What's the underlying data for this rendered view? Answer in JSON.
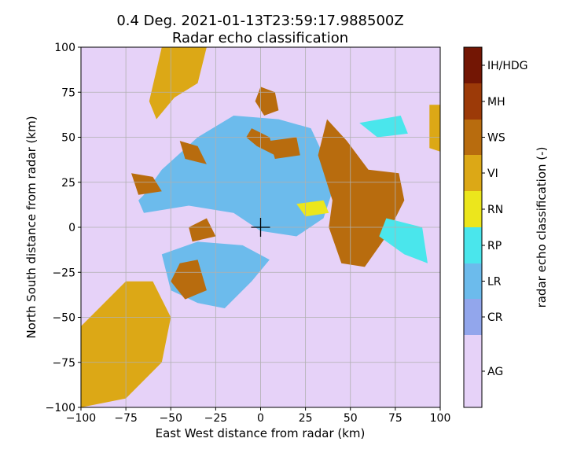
{
  "chart_data": {
    "type": "heatmap",
    "title": "0.4 Deg. 2021-01-13T23:59:17.988500Z",
    "subtitle": "Radar echo classification",
    "xlabel": "East West distance from radar (km)",
    "ylabel": "North South distance from radar (km)",
    "xlim": [
      -100,
      100
    ],
    "ylim": [
      -100,
      100
    ],
    "xticks": [
      -100,
      -75,
      -50,
      -25,
      0,
      25,
      50,
      75,
      100
    ],
    "yticks": [
      -100,
      -75,
      -50,
      -25,
      0,
      25,
      50,
      75,
      100
    ],
    "xtick_labels": [
      "−100",
      "−75",
      "−50",
      "−25",
      "0",
      "25",
      "50",
      "75",
      "100"
    ],
    "ytick_labels": [
      "−100",
      "−75",
      "−50",
      "−25",
      "0",
      "25",
      "50",
      "75",
      "100"
    ],
    "grid": true,
    "radar_marker": [
      0,
      0
    ],
    "background_class": "AG",
    "colorbar": {
      "label": "radar echo classification (-)",
      "classes": [
        {
          "name": "AG",
          "color": "#e6d2f8"
        },
        {
          "name": "CR",
          "color": "#92a6ec"
        },
        {
          "name": "LR",
          "color": "#6cbbec"
        },
        {
          "name": "RP",
          "color": "#4ae6ec"
        },
        {
          "name": "RN",
          "color": "#ece61c"
        },
        {
          "name": "VI",
          "color": "#dca816"
        },
        {
          "name": "WS",
          "color": "#b86c0e"
        },
        {
          "name": "MH",
          "color": "#9c3a08"
        },
        {
          "name": "IH/HDG",
          "color": "#731604"
        }
      ]
    },
    "regions": [
      {
        "cls": "LR",
        "points": [
          [
            -65,
            18
          ],
          [
            -55,
            32
          ],
          [
            -35,
            50
          ],
          [
            -15,
            62
          ],
          [
            10,
            60
          ],
          [
            28,
            55
          ],
          [
            35,
            40
          ],
          [
            40,
            20
          ],
          [
            35,
            5
          ],
          [
            20,
            -5
          ],
          [
            0,
            -2
          ],
          [
            -15,
            8
          ],
          [
            -40,
            12
          ],
          [
            -65,
            8
          ],
          [
            -68,
            15
          ]
        ]
      },
      {
        "cls": "LR",
        "points": [
          [
            -55,
            -15
          ],
          [
            -35,
            -8
          ],
          [
            -10,
            -10
          ],
          [
            5,
            -18
          ],
          [
            -5,
            -30
          ],
          [
            -20,
            -45
          ],
          [
            -35,
            -42
          ],
          [
            -50,
            -35
          ]
        ]
      },
      {
        "cls": "WS",
        "points": [
          [
            37,
            60
          ],
          [
            48,
            48
          ],
          [
            60,
            32
          ],
          [
            77,
            30
          ],
          [
            80,
            15
          ],
          [
            70,
            -5
          ],
          [
            58,
            -22
          ],
          [
            45,
            -20
          ],
          [
            38,
            0
          ],
          [
            40,
            15
          ],
          [
            32,
            40
          ]
        ]
      },
      {
        "cls": "WS",
        "points": [
          [
            -5,
            55
          ],
          [
            5,
            50
          ],
          [
            8,
            40
          ],
          [
            -2,
            45
          ],
          [
            -8,
            50
          ]
        ]
      },
      {
        "cls": "WS",
        "points": [
          [
            0,
            78
          ],
          [
            8,
            75
          ],
          [
            10,
            65
          ],
          [
            2,
            62
          ],
          [
            -3,
            70
          ]
        ]
      },
      {
        "cls": "WS",
        "points": [
          [
            5,
            48
          ],
          [
            20,
            50
          ],
          [
            22,
            40
          ],
          [
            8,
            38
          ]
        ]
      },
      {
        "cls": "WS",
        "points": [
          [
            -72,
            30
          ],
          [
            -60,
            28
          ],
          [
            -55,
            20
          ],
          [
            -68,
            18
          ]
        ]
      },
      {
        "cls": "WS",
        "points": [
          [
            -45,
            -20
          ],
          [
            -35,
            -18
          ],
          [
            -30,
            -35
          ],
          [
            -42,
            -40
          ],
          [
            -50,
            -30
          ]
        ]
      },
      {
        "cls": "WS",
        "points": [
          [
            -40,
            0
          ],
          [
            -30,
            5
          ],
          [
            -25,
            -5
          ],
          [
            -38,
            -8
          ]
        ]
      },
      {
        "cls": "WS",
        "points": [
          [
            -45,
            48
          ],
          [
            -35,
            45
          ],
          [
            -30,
            35
          ],
          [
            -42,
            38
          ]
        ]
      },
      {
        "cls": "VI",
        "points": [
          [
            -55,
            100
          ],
          [
            -30,
            100
          ],
          [
            -35,
            80
          ],
          [
            -48,
            72
          ],
          [
            -58,
            60
          ],
          [
            -62,
            70
          ]
        ]
      },
      {
        "cls": "VI",
        "points": [
          [
            -100,
            -55
          ],
          [
            -75,
            -30
          ],
          [
            -60,
            -30
          ],
          [
            -50,
            -50
          ],
          [
            -55,
            -75
          ],
          [
            -75,
            -95
          ],
          [
            -100,
            -100
          ]
        ]
      },
      {
        "cls": "VI",
        "points": [
          [
            94,
            68
          ],
          [
            100,
            68
          ],
          [
            100,
            42
          ],
          [
            94,
            44
          ]
        ]
      },
      {
        "cls": "RP",
        "points": [
          [
            70,
            5
          ],
          [
            90,
            0
          ],
          [
            93,
            -20
          ],
          [
            80,
            -15
          ],
          [
            66,
            -5
          ]
        ]
      },
      {
        "cls": "RP",
        "points": [
          [
            55,
            58
          ],
          [
            78,
            62
          ],
          [
            82,
            52
          ],
          [
            65,
            50
          ]
        ]
      },
      {
        "cls": "RN",
        "points": [
          [
            20,
            13
          ],
          [
            35,
            15
          ],
          [
            38,
            8
          ],
          [
            25,
            6
          ]
        ]
      }
    ]
  }
}
